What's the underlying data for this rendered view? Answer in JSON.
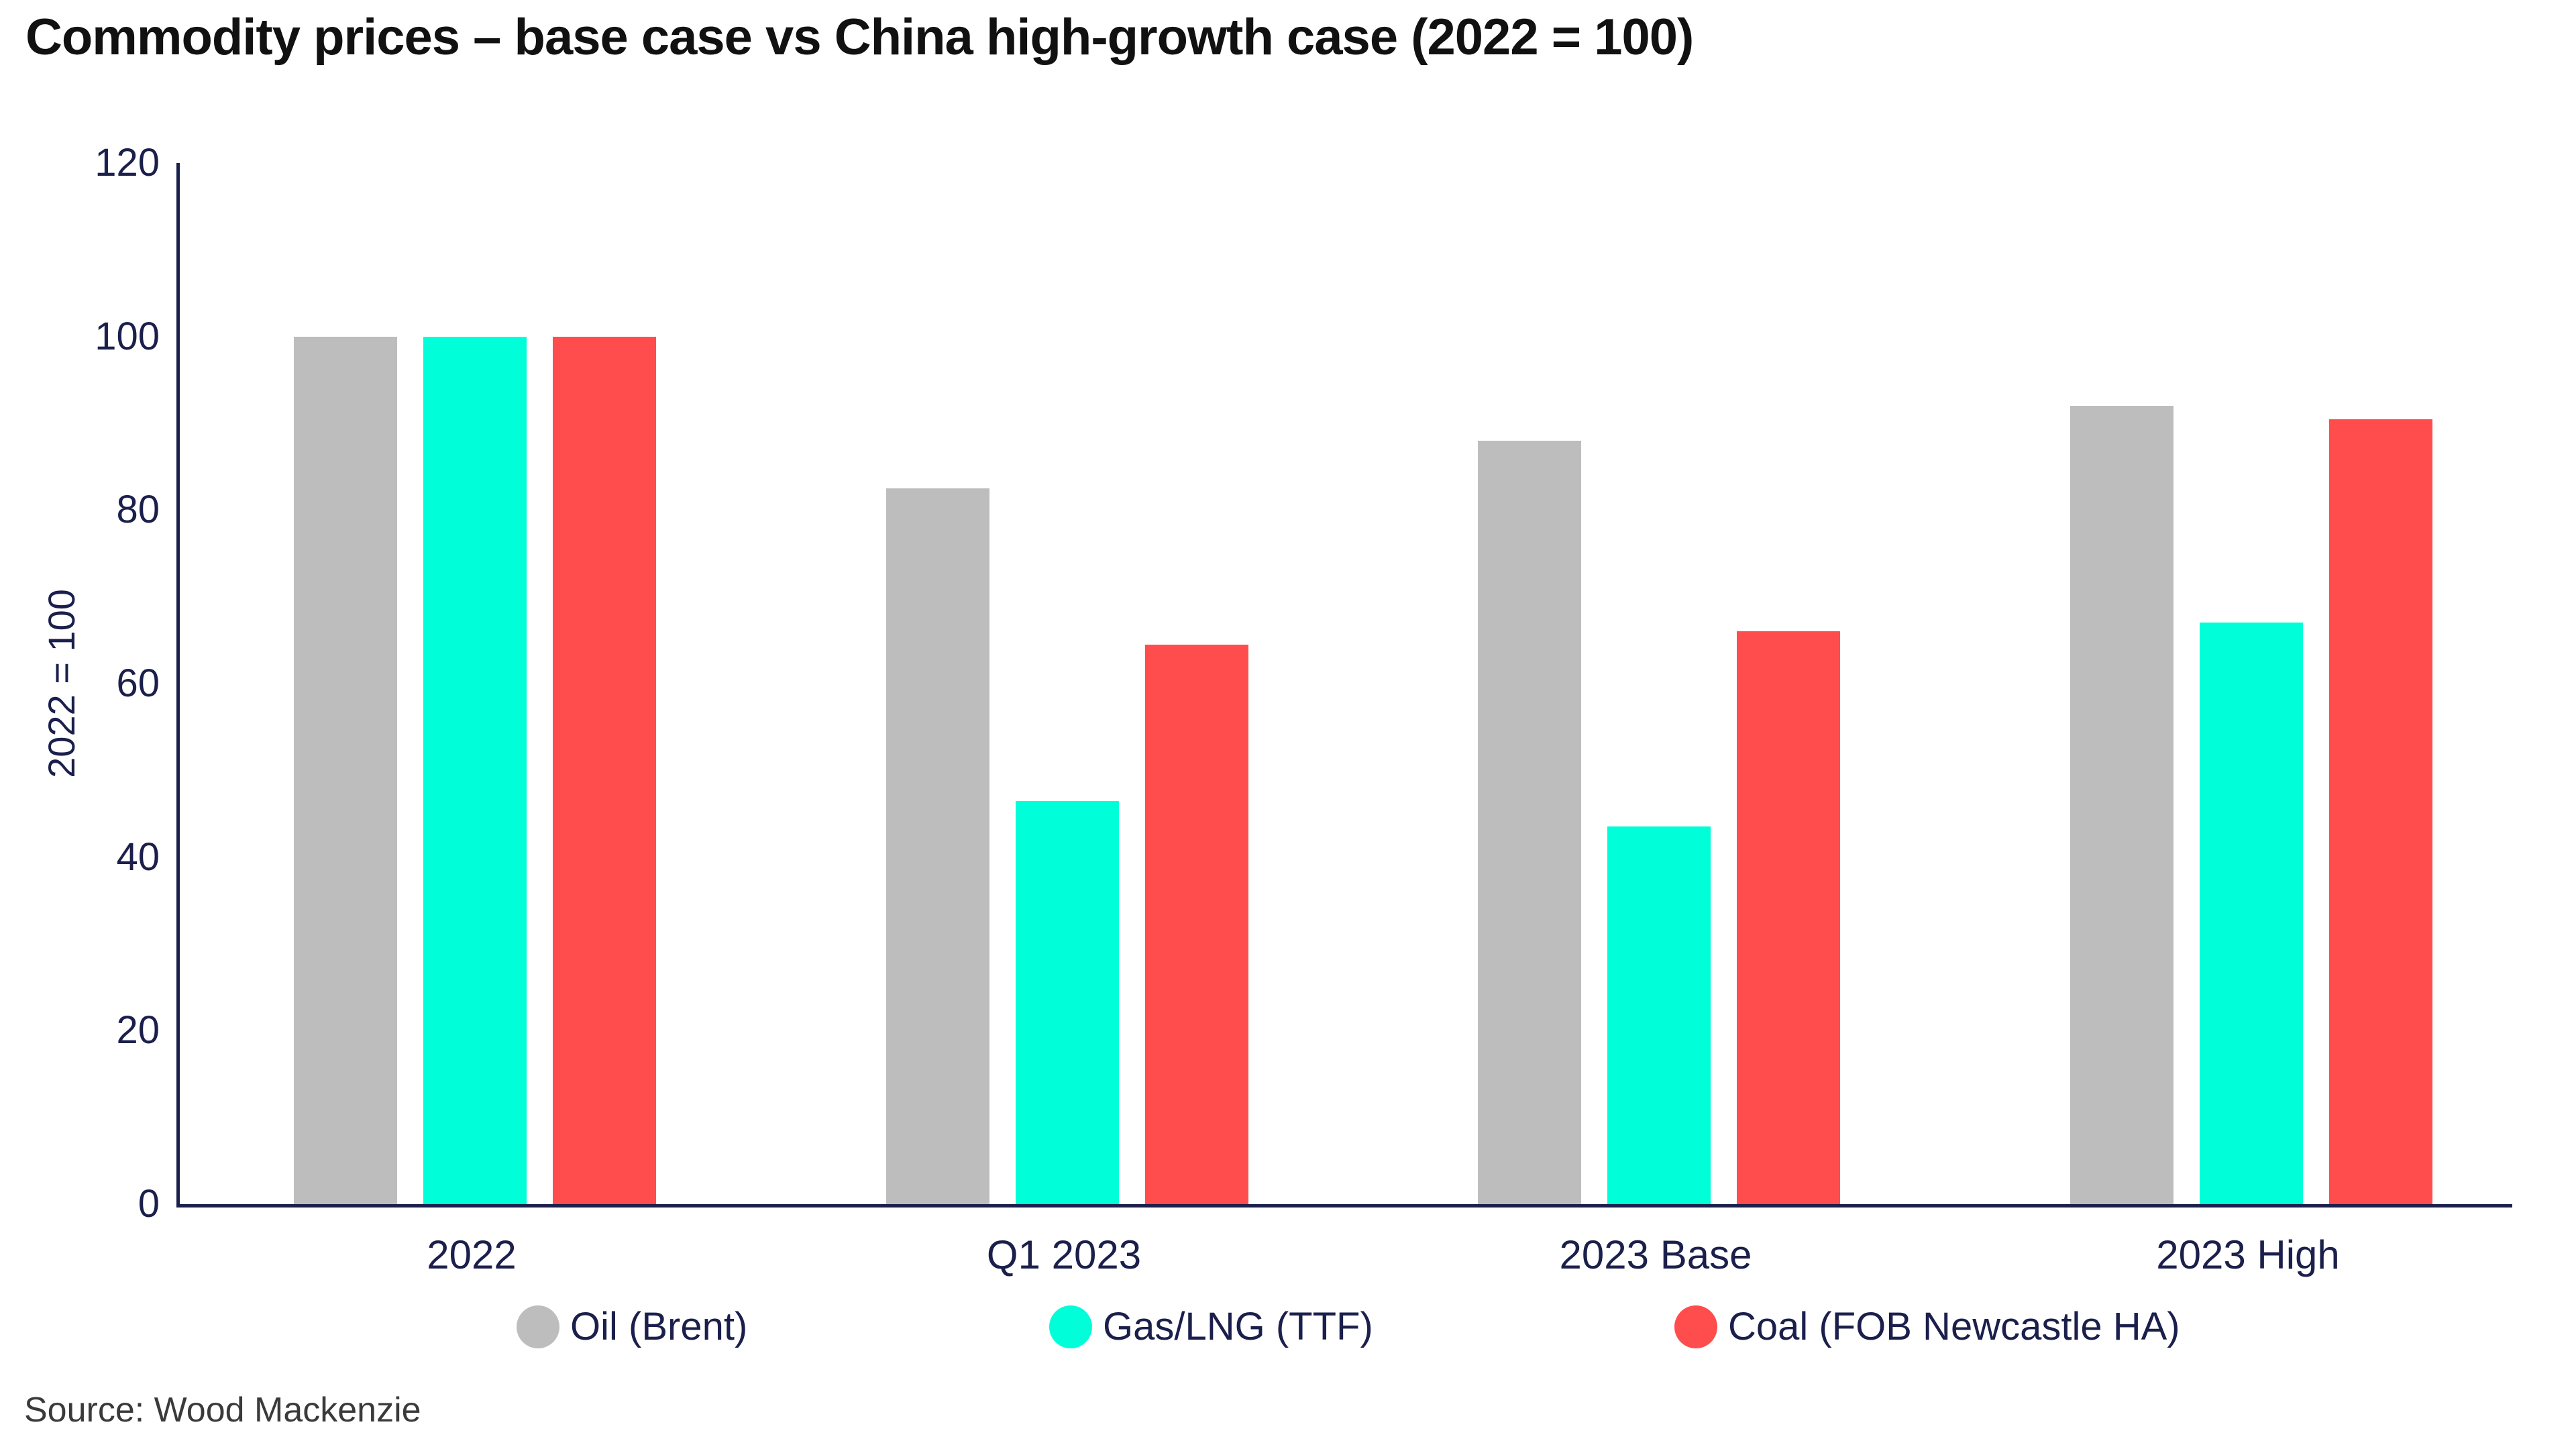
{
  "title": "Commodity prices – base case vs China high-growth case (2022 = 100)",
  "source": "Source: Wood Mackenzie",
  "y_axis": {
    "label": "2022 = 100",
    "ticks": [
      0,
      20,
      40,
      60,
      80,
      100,
      120
    ],
    "max": 120
  },
  "chart_data": {
    "type": "bar",
    "title": "Commodity prices – base case vs China high-growth case (2022 = 100)",
    "categories": [
      "2022",
      "Q1 2023",
      "2023 Base",
      "2023 High"
    ],
    "series": [
      {
        "name": "Oil (Brent)",
        "color": "#BDBDBD",
        "values": [
          100,
          82.5,
          88,
          92
        ]
      },
      {
        "name": "Gas/LNG (TTF)",
        "color": "#00FFD8",
        "values": [
          100,
          46.5,
          43.5,
          67
        ]
      },
      {
        "name": "Coal (FOB Newcastle HA)",
        "color": "#FF4D4D",
        "values": [
          100,
          64.5,
          66,
          90.5
        ]
      }
    ],
    "xlabel": "",
    "ylabel": "2022 = 100",
    "ylim": [
      0,
      120
    ],
    "grid": false,
    "legend_position": "bottom"
  },
  "colors": {
    "axis_and_text": "#1B1F4B",
    "title_text": "#111111",
    "source_text": "#3A3A3A",
    "background": "#FFFFFF"
  }
}
